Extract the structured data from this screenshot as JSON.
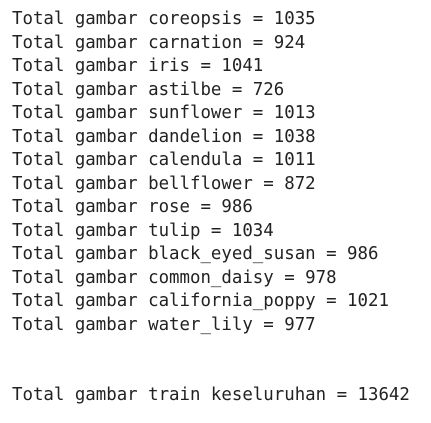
{
  "lines": [
    "Total gambar coreopsis = 1035",
    "Total gambar carnation = 924",
    "Total gambar iris = 1041",
    "Total gambar astilbe = 726",
    "Total gambar sunflower = 1013",
    "Total gambar dandelion = 1038",
    "Total gambar calendula = 1011",
    "Total gambar bellflower = 872",
    "Total gambar rose = 986",
    "Total gambar tulip = 1034",
    "Total gambar black_eyed_susan = 986",
    "Total gambar common_daisy = 978",
    "Total gambar california_poppy = 1021",
    "Total gambar water_lily = 977"
  ],
  "summary": "Total gambar train keseluruhan = 13642"
}
